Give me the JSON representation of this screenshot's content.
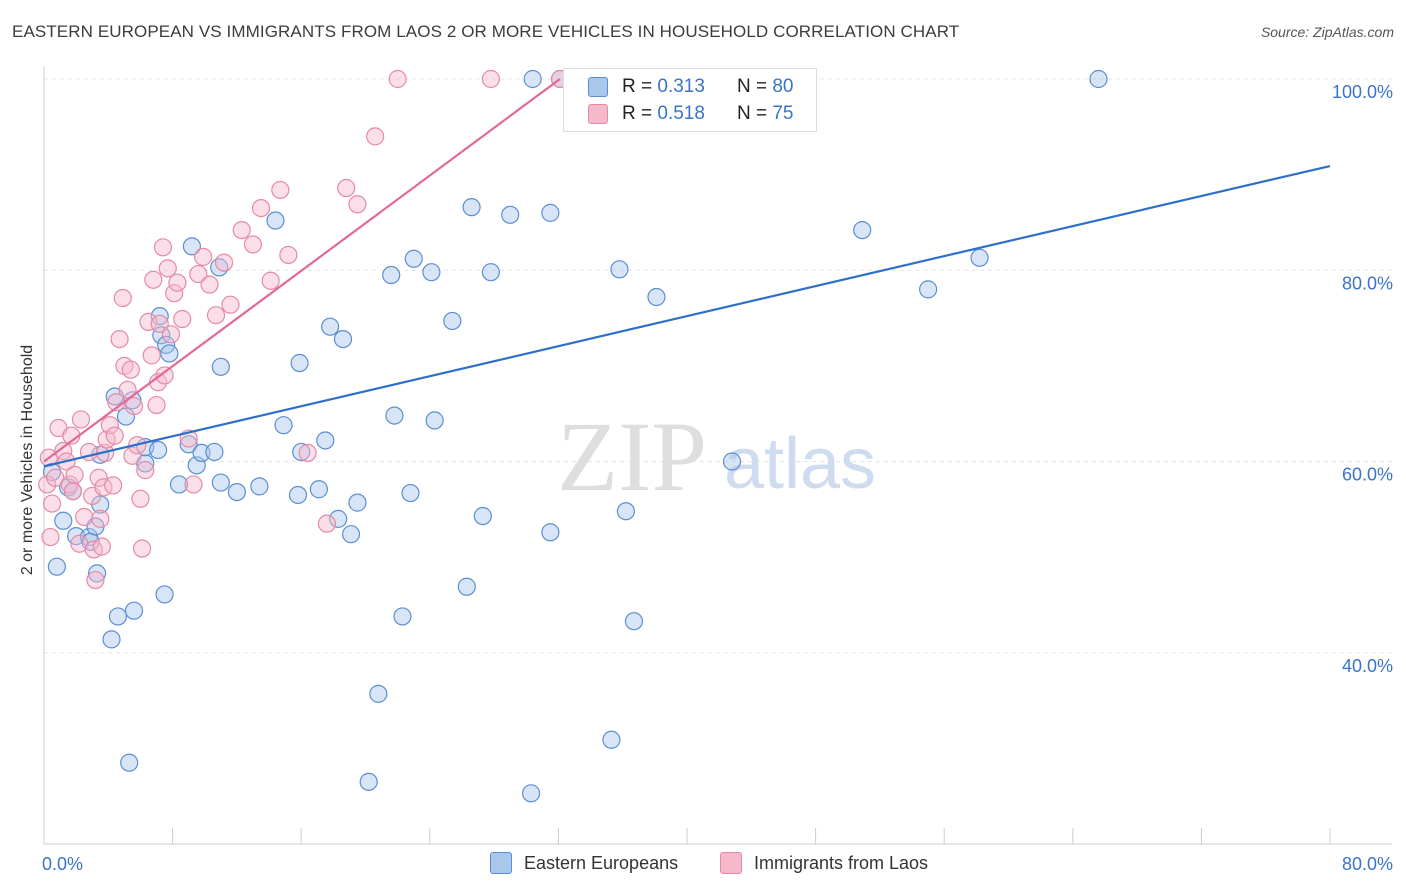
{
  "title": "EASTERN EUROPEAN VS IMMIGRANTS FROM LAOS 2 OR MORE VEHICLES IN HOUSEHOLD CORRELATION CHART",
  "source": "Source: ZipAtlas.com",
  "watermark": {
    "zip": "ZIP",
    "atlas": "atlas"
  },
  "legend": {
    "r_label": "R =",
    "n_label": "N =",
    "rows": [
      {
        "name": "Eastern Europeans",
        "r": "0.313",
        "n": "80"
      },
      {
        "name": "Immigrants from Laos",
        "r": "0.518",
        "n": "75"
      }
    ]
  },
  "colors": {
    "blue_fill": "#a9c6ec",
    "blue_stroke": "#5b8fd1",
    "blue_line": "#2e6fca",
    "pink_fill": "#f6b8cb",
    "pink_stroke": "#e58aa6",
    "pink_line": "#e2679a",
    "tick_text": "#3a74c8",
    "grid": "#e4e4e4"
  },
  "chart_data": {
    "type": "scatter",
    "title": "EASTERN EUROPEAN VS IMMIGRANTS FROM LAOS 2 OR MORE VEHICLES IN HOUSEHOLD CORRELATION CHART",
    "xlabel": "",
    "ylabel": "2 or more Vehicles in Household",
    "xlim": [
      0,
      80
    ],
    "ylim": [
      20,
      100
    ],
    "x_tick_labels": [
      "0.0%",
      "80.0%"
    ],
    "y_ticks": [
      {
        "value": 100,
        "label": "100.0%"
      },
      {
        "value": 80,
        "label": "80.0%"
      },
      {
        "value": 60,
        "label": "60.0%"
      },
      {
        "value": 40,
        "label": "40.0%"
      }
    ],
    "grid": true,
    "series": [
      {
        "name": "Eastern Europeans",
        "color": "blue",
        "r": 0.313,
        "n": 80,
        "trend": {
          "x": [
            0,
            80
          ],
          "y": [
            59.5,
            90.9
          ]
        },
        "points": [
          [
            0.5,
            58.9
          ],
          [
            0.8,
            49.0
          ],
          [
            1.2,
            53.8
          ],
          [
            1.5,
            57.3
          ],
          [
            1.8,
            56.9
          ],
          [
            2.0,
            52.2
          ],
          [
            2.8,
            52.1
          ],
          [
            2.9,
            51.6
          ],
          [
            3.2,
            53.2
          ],
          [
            3.3,
            48.3
          ],
          [
            3.5,
            55.5
          ],
          [
            3.5,
            60.7
          ],
          [
            4.2,
            41.4
          ],
          [
            4.4,
            66.8
          ],
          [
            4.6,
            43.8
          ],
          [
            5.1,
            64.7
          ],
          [
            5.3,
            28.5
          ],
          [
            5.5,
            66.4
          ],
          [
            5.6,
            44.4
          ],
          [
            6.3,
            59.8
          ],
          [
            6.3,
            61.5
          ],
          [
            7.1,
            61.2
          ],
          [
            7.2,
            75.2
          ],
          [
            7.3,
            73.2
          ],
          [
            7.5,
            46.1
          ],
          [
            7.6,
            72.2
          ],
          [
            7.8,
            71.3
          ],
          [
            8.4,
            57.6
          ],
          [
            9.0,
            61.8
          ],
          [
            9.2,
            82.5
          ],
          [
            9.5,
            59.6
          ],
          [
            9.8,
            60.9
          ],
          [
            10.6,
            61.0
          ],
          [
            10.9,
            80.3
          ],
          [
            11.0,
            57.8
          ],
          [
            11.0,
            69.9
          ],
          [
            12.0,
            56.8
          ],
          [
            13.4,
            57.4
          ],
          [
            14.4,
            85.2
          ],
          [
            14.9,
            63.8
          ],
          [
            15.8,
            56.5
          ],
          [
            16.0,
            61.0
          ],
          [
            15.9,
            70.3
          ],
          [
            17.1,
            57.1
          ],
          [
            17.5,
            62.2
          ],
          [
            17.8,
            74.1
          ],
          [
            18.3,
            54.0
          ],
          [
            18.6,
            72.8
          ],
          [
            19.1,
            52.4
          ],
          [
            19.5,
            55.7
          ],
          [
            20.2,
            26.5
          ],
          [
            20.8,
            35.7
          ],
          [
            21.6,
            79.5
          ],
          [
            22.3,
            43.8
          ],
          [
            21.8,
            64.8
          ],
          [
            22.8,
            56.7
          ],
          [
            23.0,
            81.2
          ],
          [
            24.1,
            79.8
          ],
          [
            24.3,
            64.3
          ],
          [
            25.4,
            74.7
          ],
          [
            26.3,
            46.9
          ],
          [
            27.3,
            54.3
          ],
          [
            26.6,
            86.6
          ],
          [
            27.8,
            79.8
          ],
          [
            29.0,
            85.8
          ],
          [
            30.4,
            100.0
          ],
          [
            31.5,
            86.0
          ],
          [
            30.3,
            25.3
          ],
          [
            31.5,
            52.6
          ],
          [
            32.1,
            100.0
          ],
          [
            35.3,
            30.9
          ],
          [
            35.8,
            80.1
          ],
          [
            36.2,
            54.8
          ],
          [
            36.7,
            43.3
          ],
          [
            38.1,
            77.2
          ],
          [
            42.8,
            60.0
          ],
          [
            50.9,
            84.2
          ],
          [
            55.0,
            78.0
          ],
          [
            58.2,
            81.3
          ],
          [
            65.6,
            100.0
          ]
        ]
      },
      {
        "name": "Immigrants from Laos",
        "color": "pink",
        "r": 0.518,
        "n": 75,
        "trend": {
          "x": [
            0,
            32.1
          ],
          "y": [
            60.0,
            100.0
          ]
        },
        "points": [
          [
            0.2,
            57.6
          ],
          [
            0.3,
            60.4
          ],
          [
            0.4,
            52.1
          ],
          [
            0.5,
            55.6
          ],
          [
            0.7,
            58.3
          ],
          [
            0.9,
            63.5
          ],
          [
            1.2,
            61.1
          ],
          [
            1.4,
            60.0
          ],
          [
            1.6,
            57.6
          ],
          [
            1.7,
            62.7
          ],
          [
            1.8,
            56.9
          ],
          [
            1.9,
            58.6
          ],
          [
            2.2,
            51.4
          ],
          [
            2.3,
            64.4
          ],
          [
            2.5,
            54.2
          ],
          [
            2.8,
            61.0
          ],
          [
            3.0,
            56.4
          ],
          [
            3.1,
            50.8
          ],
          [
            3.2,
            47.6
          ],
          [
            3.4,
            58.3
          ],
          [
            3.5,
            54.0
          ],
          [
            3.6,
            51.1
          ],
          [
            3.7,
            57.3
          ],
          [
            3.8,
            60.9
          ],
          [
            3.9,
            62.3
          ],
          [
            4.1,
            63.8
          ],
          [
            4.3,
            57.5
          ],
          [
            4.4,
            62.7
          ],
          [
            4.5,
            66.2
          ],
          [
            4.7,
            72.8
          ],
          [
            4.9,
            77.1
          ],
          [
            5.0,
            70.0
          ],
          [
            5.2,
            67.5
          ],
          [
            5.4,
            69.6
          ],
          [
            5.5,
            60.6
          ],
          [
            5.6,
            65.8
          ],
          [
            5.8,
            61.7
          ],
          [
            6.0,
            56.1
          ],
          [
            6.1,
            50.9
          ],
          [
            6.3,
            59.1
          ],
          [
            6.5,
            74.6
          ],
          [
            6.7,
            71.1
          ],
          [
            6.8,
            79.0
          ],
          [
            7.0,
            65.9
          ],
          [
            7.1,
            68.3
          ],
          [
            7.2,
            74.4
          ],
          [
            7.4,
            82.4
          ],
          [
            7.5,
            69.0
          ],
          [
            7.7,
            80.2
          ],
          [
            7.9,
            73.3
          ],
          [
            8.1,
            77.6
          ],
          [
            8.3,
            78.7
          ],
          [
            8.6,
            74.9
          ],
          [
            9.0,
            62.4
          ],
          [
            9.3,
            57.6
          ],
          [
            9.6,
            79.6
          ],
          [
            9.9,
            81.4
          ],
          [
            10.3,
            78.5
          ],
          [
            10.7,
            75.3
          ],
          [
            11.2,
            80.8
          ],
          [
            11.6,
            76.4
          ],
          [
            12.3,
            84.2
          ],
          [
            13.0,
            82.7
          ],
          [
            13.5,
            86.5
          ],
          [
            14.1,
            78.9
          ],
          [
            14.7,
            88.4
          ],
          [
            15.2,
            81.6
          ],
          [
            16.4,
            60.9
          ],
          [
            17.6,
            53.5
          ],
          [
            18.8,
            88.6
          ],
          [
            19.5,
            86.9
          ],
          [
            20.6,
            94.0
          ],
          [
            22.0,
            100.0
          ],
          [
            27.8,
            100.0
          ],
          [
            32.1,
            100.0
          ]
        ]
      }
    ]
  }
}
